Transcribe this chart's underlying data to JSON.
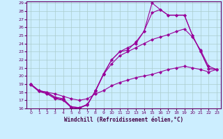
{
  "xlabel": "Windchill (Refroidissement éolien,°C)",
  "bg_color": "#cceeff",
  "grid_color": "#aacccc",
  "line_color": "#990099",
  "xlim": [
    -0.5,
    23.5
  ],
  "ylim": [
    16,
    29.2
  ],
  "yticks": [
    16,
    17,
    18,
    19,
    20,
    21,
    22,
    23,
    24,
    25,
    26,
    27,
    28,
    29
  ],
  "xticks": [
    0,
    1,
    2,
    3,
    4,
    5,
    6,
    7,
    8,
    9,
    10,
    11,
    12,
    13,
    14,
    15,
    16,
    17,
    18,
    19,
    20,
    21,
    22,
    23
  ],
  "series": [
    {
      "x": [
        0,
        1,
        2,
        3,
        4,
        5,
        6,
        7,
        8,
        9,
        10,
        11,
        12,
        13,
        14,
        15,
        16,
        17,
        18,
        19,
        20,
        21,
        22,
        23
      ],
      "y": [
        19.0,
        18.2,
        18.0,
        17.8,
        17.5,
        17.2,
        17.0,
        17.2,
        17.8,
        18.2,
        18.8,
        19.2,
        19.5,
        19.8,
        20.0,
        20.2,
        20.5,
        20.8,
        21.0,
        21.2,
        21.0,
        20.8,
        20.5,
        20.8
      ]
    },
    {
      "x": [
        0,
        1,
        2,
        3,
        4,
        5,
        6,
        7,
        8,
        9,
        10,
        11,
        12,
        13,
        14,
        15,
        16,
        17,
        18,
        19,
        20,
        21,
        22,
        23
      ],
      "y": [
        18.9,
        18.1,
        17.8,
        17.2,
        17.0,
        16.1,
        16.0,
        16.5,
        18.1,
        20.2,
        21.5,
        22.5,
        23.0,
        23.5,
        24.0,
        24.5,
        24.8,
        25.1,
        25.5,
        25.8,
        24.8,
        23.2,
        21.2,
        20.8
      ]
    },
    {
      "x": [
        0,
        1,
        2,
        3,
        4,
        5,
        6,
        7,
        8,
        9,
        10,
        11,
        12,
        13,
        14,
        15,
        16,
        17,
        18,
        19,
        20,
        21,
        22,
        23
      ],
      "y": [
        19.0,
        18.1,
        17.9,
        17.3,
        17.1,
        16.2,
        16.1,
        16.4,
        18.2,
        20.2,
        22.0,
        23.0,
        23.2,
        24.2,
        25.5,
        29.0,
        28.2,
        27.5,
        27.5,
        27.5,
        25.0,
        23.0,
        20.9,
        20.8
      ]
    },
    {
      "x": [
        0,
        1,
        2,
        3,
        4,
        5,
        6,
        7,
        8,
        9,
        10,
        11,
        12,
        13,
        14,
        15,
        16,
        17,
        18,
        19,
        20,
        21,
        22,
        23
      ],
      "y": [
        19.0,
        18.2,
        18.0,
        17.4,
        17.2,
        16.2,
        16.1,
        16.5,
        18.2,
        20.3,
        22.0,
        23.0,
        23.5,
        24.0,
        25.5,
        27.8,
        28.2,
        27.5,
        27.5,
        27.5,
        25.0,
        23.0,
        20.9,
        20.8
      ]
    }
  ]
}
